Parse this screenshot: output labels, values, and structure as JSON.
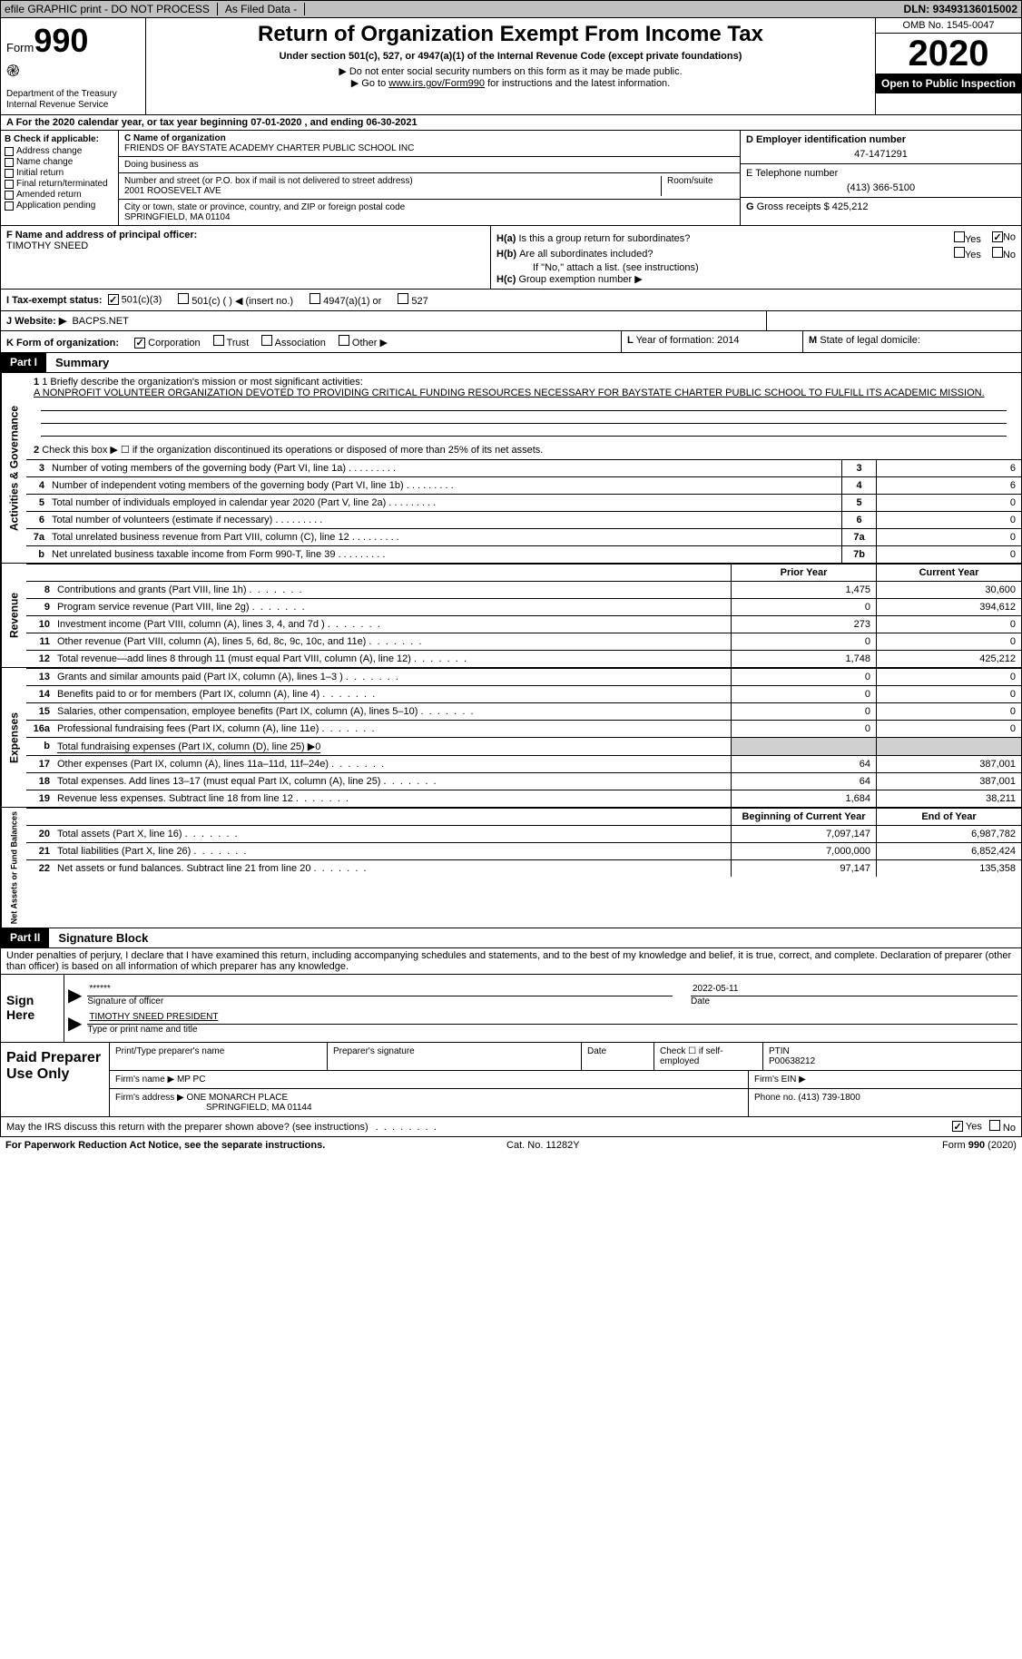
{
  "top_bar": {
    "efile": "efile GRAPHIC print - DO NOT PROCESS",
    "as_filed": "As Filed Data -",
    "dln_label": "DLN:",
    "dln": "93493136015002"
  },
  "header": {
    "form_label": "Form",
    "form_no": "990",
    "dept": "Department of the Treasury",
    "irs": "Internal Revenue Service",
    "title": "Return of Organization Exempt From Income Tax",
    "sub": "Under section 501(c), 527, or 4947(a)(1) of the Internal Revenue Code (except private foundations)",
    "note1": "▶ Do not enter social security numbers on this form as it may be made public.",
    "note2_pre": "▶ Go to ",
    "note2_link": "www.irs.gov/Form990",
    "note2_post": " for instructions and the latest information.",
    "omb": "OMB No. 1545-0047",
    "year": "2020",
    "open": "Open to Public Inspection"
  },
  "row_a": "A   For the 2020 calendar year, or tax year beginning 07-01-2020   , and ending 06-30-2021",
  "col_b": {
    "label": "B Check if applicable:",
    "items": [
      "Address change",
      "Name change",
      "Initial return",
      "Final return/terminated",
      "Amended return",
      "Application pending"
    ]
  },
  "col_c": {
    "name_lbl": "C Name of organization",
    "name": "FRIENDS OF BAYSTATE ACADEMY CHARTER PUBLIC SCHOOL INC",
    "dba_lbl": "Doing business as",
    "addr_lbl": "Number and street (or P.O. box if mail is not delivered to street address)",
    "room_lbl": "Room/suite",
    "addr": "2001 ROOSEVELT AVE",
    "city_lbl": "City or town, state or province, country, and ZIP or foreign postal code",
    "city": "SPRINGFIELD, MA  01104"
  },
  "col_d": {
    "label": "D Employer identification number",
    "val": "47-1471291"
  },
  "col_e": {
    "label": "E Telephone number",
    "val": "(413) 366-5100"
  },
  "col_g": {
    "label": "G",
    "text": "Gross receipts $",
    "val": "425,212"
  },
  "col_f": {
    "label": "F  Name and address of principal officer:",
    "val": "TIMOTHY SNEED"
  },
  "col_h": {
    "a_lbl": "H(a)",
    "a_text": "Is this a group return for subordinates?",
    "a_yes": false,
    "a_no": true,
    "b_lbl": "H(b)",
    "b_text": "Are all subordinates included?",
    "b_note": "If \"No,\" attach a list. (see instructions)",
    "c_lbl": "H(c)",
    "c_text": "Group exemption number ▶"
  },
  "row_i": {
    "label": "I   Tax-exempt status:",
    "opts": [
      "501(c)(3)",
      "501(c) (  ) ◀ (insert no.)",
      "4947(a)(1) or",
      "527"
    ],
    "checked": 0
  },
  "row_j": {
    "label": "J   Website: ▶",
    "val": "BACPS.NET"
  },
  "row_k": {
    "label": "K Form of organization:",
    "opts": [
      "Corporation",
      "Trust",
      "Association",
      "Other ▶"
    ],
    "checked": 0
  },
  "row_l": {
    "label": "L",
    "text": "Year of formation:",
    "val": "2014"
  },
  "row_m": {
    "label": "M",
    "text": "State of legal domicile:"
  },
  "part1": {
    "tag": "Part I",
    "title": "Summary",
    "q1": "1 Briefly describe the organization's mission or most significant activities:",
    "q1_ans": "A NONPROFIT VOLUNTEER ORGANIZATION DEVOTED TO PROVIDING CRITICAL FUNDING RESOURCES NECESSARY FOR BAYSTATE CHARTER PUBLIC SCHOOL TO FULFILL ITS ACADEMIC MISSION.",
    "q2": "Check this box ▶ ☐ if the organization discontinued its operations or disposed of more than 25% of its net assets.",
    "vtab_ag": "Activities & Governance",
    "lines_ag": [
      {
        "n": "3",
        "d": "Number of voting members of the governing body (Part VI, line 1a)",
        "rn": "3",
        "v": "6"
      },
      {
        "n": "4",
        "d": "Number of independent voting members of the governing body (Part VI, line 1b)",
        "rn": "4",
        "v": "6"
      },
      {
        "n": "5",
        "d": "Total number of individuals employed in calendar year 2020 (Part V, line 2a)",
        "rn": "5",
        "v": "0"
      },
      {
        "n": "6",
        "d": "Total number of volunteers (estimate if necessary)",
        "rn": "6",
        "v": "0"
      },
      {
        "n": "7a",
        "d": "Total unrelated business revenue from Part VIII, column (C), line 12",
        "rn": "7a",
        "v": "0"
      },
      {
        "n": "b",
        "d": "Net unrelated business taxable income from Form 990-T, line 39",
        "rn": "7b",
        "v": "0"
      }
    ],
    "hdr_prior": "Prior Year",
    "hdr_curr": "Current Year",
    "vtab_rev": "Revenue",
    "lines_rev": [
      {
        "n": "8",
        "d": "Contributions and grants (Part VIII, line 1h)",
        "c1": "1,475",
        "c2": "30,600"
      },
      {
        "n": "9",
        "d": "Program service revenue (Part VIII, line 2g)",
        "c1": "0",
        "c2": "394,612"
      },
      {
        "n": "10",
        "d": "Investment income (Part VIII, column (A), lines 3, 4, and 7d )",
        "c1": "273",
        "c2": "0"
      },
      {
        "n": "11",
        "d": "Other revenue (Part VIII, column (A), lines 5, 6d, 8c, 9c, 10c, and 11e)",
        "c1": "0",
        "c2": "0"
      },
      {
        "n": "12",
        "d": "Total revenue—add lines 8 through 11 (must equal Part VIII, column (A), line 12)",
        "c1": "1,748",
        "c2": "425,212"
      }
    ],
    "vtab_exp": "Expenses",
    "lines_exp": [
      {
        "n": "13",
        "d": "Grants and similar amounts paid (Part IX, column (A), lines 1–3 )",
        "c1": "0",
        "c2": "0"
      },
      {
        "n": "14",
        "d": "Benefits paid to or for members (Part IX, column (A), line 4)",
        "c1": "0",
        "c2": "0"
      },
      {
        "n": "15",
        "d": "Salaries, other compensation, employee benefits (Part IX, column (A), lines 5–10)",
        "c1": "0",
        "c2": "0"
      },
      {
        "n": "16a",
        "d": "Professional fundraising fees (Part IX, column (A), line 11e)",
        "c1": "0",
        "c2": "0"
      },
      {
        "n": "b",
        "d": "Total fundraising expenses (Part IX, column (D), line 25) ▶0",
        "c1": "",
        "c2": "",
        "grey": true,
        "underline": true
      },
      {
        "n": "17",
        "d": "Other expenses (Part IX, column (A), lines 11a–11d, 11f–24e)",
        "c1": "64",
        "c2": "387,001"
      },
      {
        "n": "18",
        "d": "Total expenses. Add lines 13–17 (must equal Part IX, column (A), line 25)",
        "c1": "64",
        "c2": "387,001"
      },
      {
        "n": "19",
        "d": "Revenue less expenses. Subtract line 18 from line 12",
        "c1": "1,684",
        "c2": "38,211"
      }
    ],
    "hdr_beg": "Beginning of Current Year",
    "hdr_end": "End of Year",
    "vtab_na": "Net Assets or Fund Balances",
    "lines_na": [
      {
        "n": "20",
        "d": "Total assets (Part X, line 16)",
        "c1": "7,097,147",
        "c2": "6,987,782"
      },
      {
        "n": "21",
        "d": "Total liabilities (Part X, line 26)",
        "c1": "7,000,000",
        "c2": "6,852,424"
      },
      {
        "n": "22",
        "d": "Net assets or fund balances. Subtract line 21 from line 20",
        "c1": "97,147",
        "c2": "135,358"
      }
    ]
  },
  "part2": {
    "tag": "Part II",
    "title": "Signature Block",
    "decl": "Under penalties of perjury, I declare that I have examined this return, including accompanying schedules and statements, and to the best of my knowledge and belief, it is true, correct, and complete. Declaration of preparer (other than officer) is based on all information of which preparer has any knowledge."
  },
  "sign": {
    "label": "Sign Here",
    "stars": "******",
    "sig_lbl": "Signature of officer",
    "date": "2022-05-11",
    "date_lbl": "Date",
    "name": "TIMOTHY SNEED PRESIDENT",
    "name_lbl": "Type or print name and title"
  },
  "preparer": {
    "label": "Paid Preparer Use Only",
    "h_print": "Print/Type preparer's name",
    "h_sig": "Preparer's signature",
    "h_date": "Date",
    "h_check": "Check ☐ if self-employed",
    "h_ptin": "PTIN",
    "ptin": "P00638212",
    "firm_name_lbl": "Firm's name   ▶",
    "firm_name": "MP PC",
    "firm_ein_lbl": "Firm's EIN ▶",
    "firm_addr_lbl": "Firm's address ▶",
    "firm_addr": "ONE MONARCH PLACE",
    "firm_city": "SPRINGFIELD, MA  01144",
    "phone_lbl": "Phone no.",
    "phone": "(413) 739-1800"
  },
  "bottom": {
    "q": "May the IRS discuss this return with the preparer shown above? (see instructions)",
    "yes": true,
    "no": false
  },
  "footer": {
    "left": "For Paperwork Reduction Act Notice, see the separate instructions.",
    "center": "Cat. No. 11282Y",
    "right": "Form 990 (2020)"
  }
}
